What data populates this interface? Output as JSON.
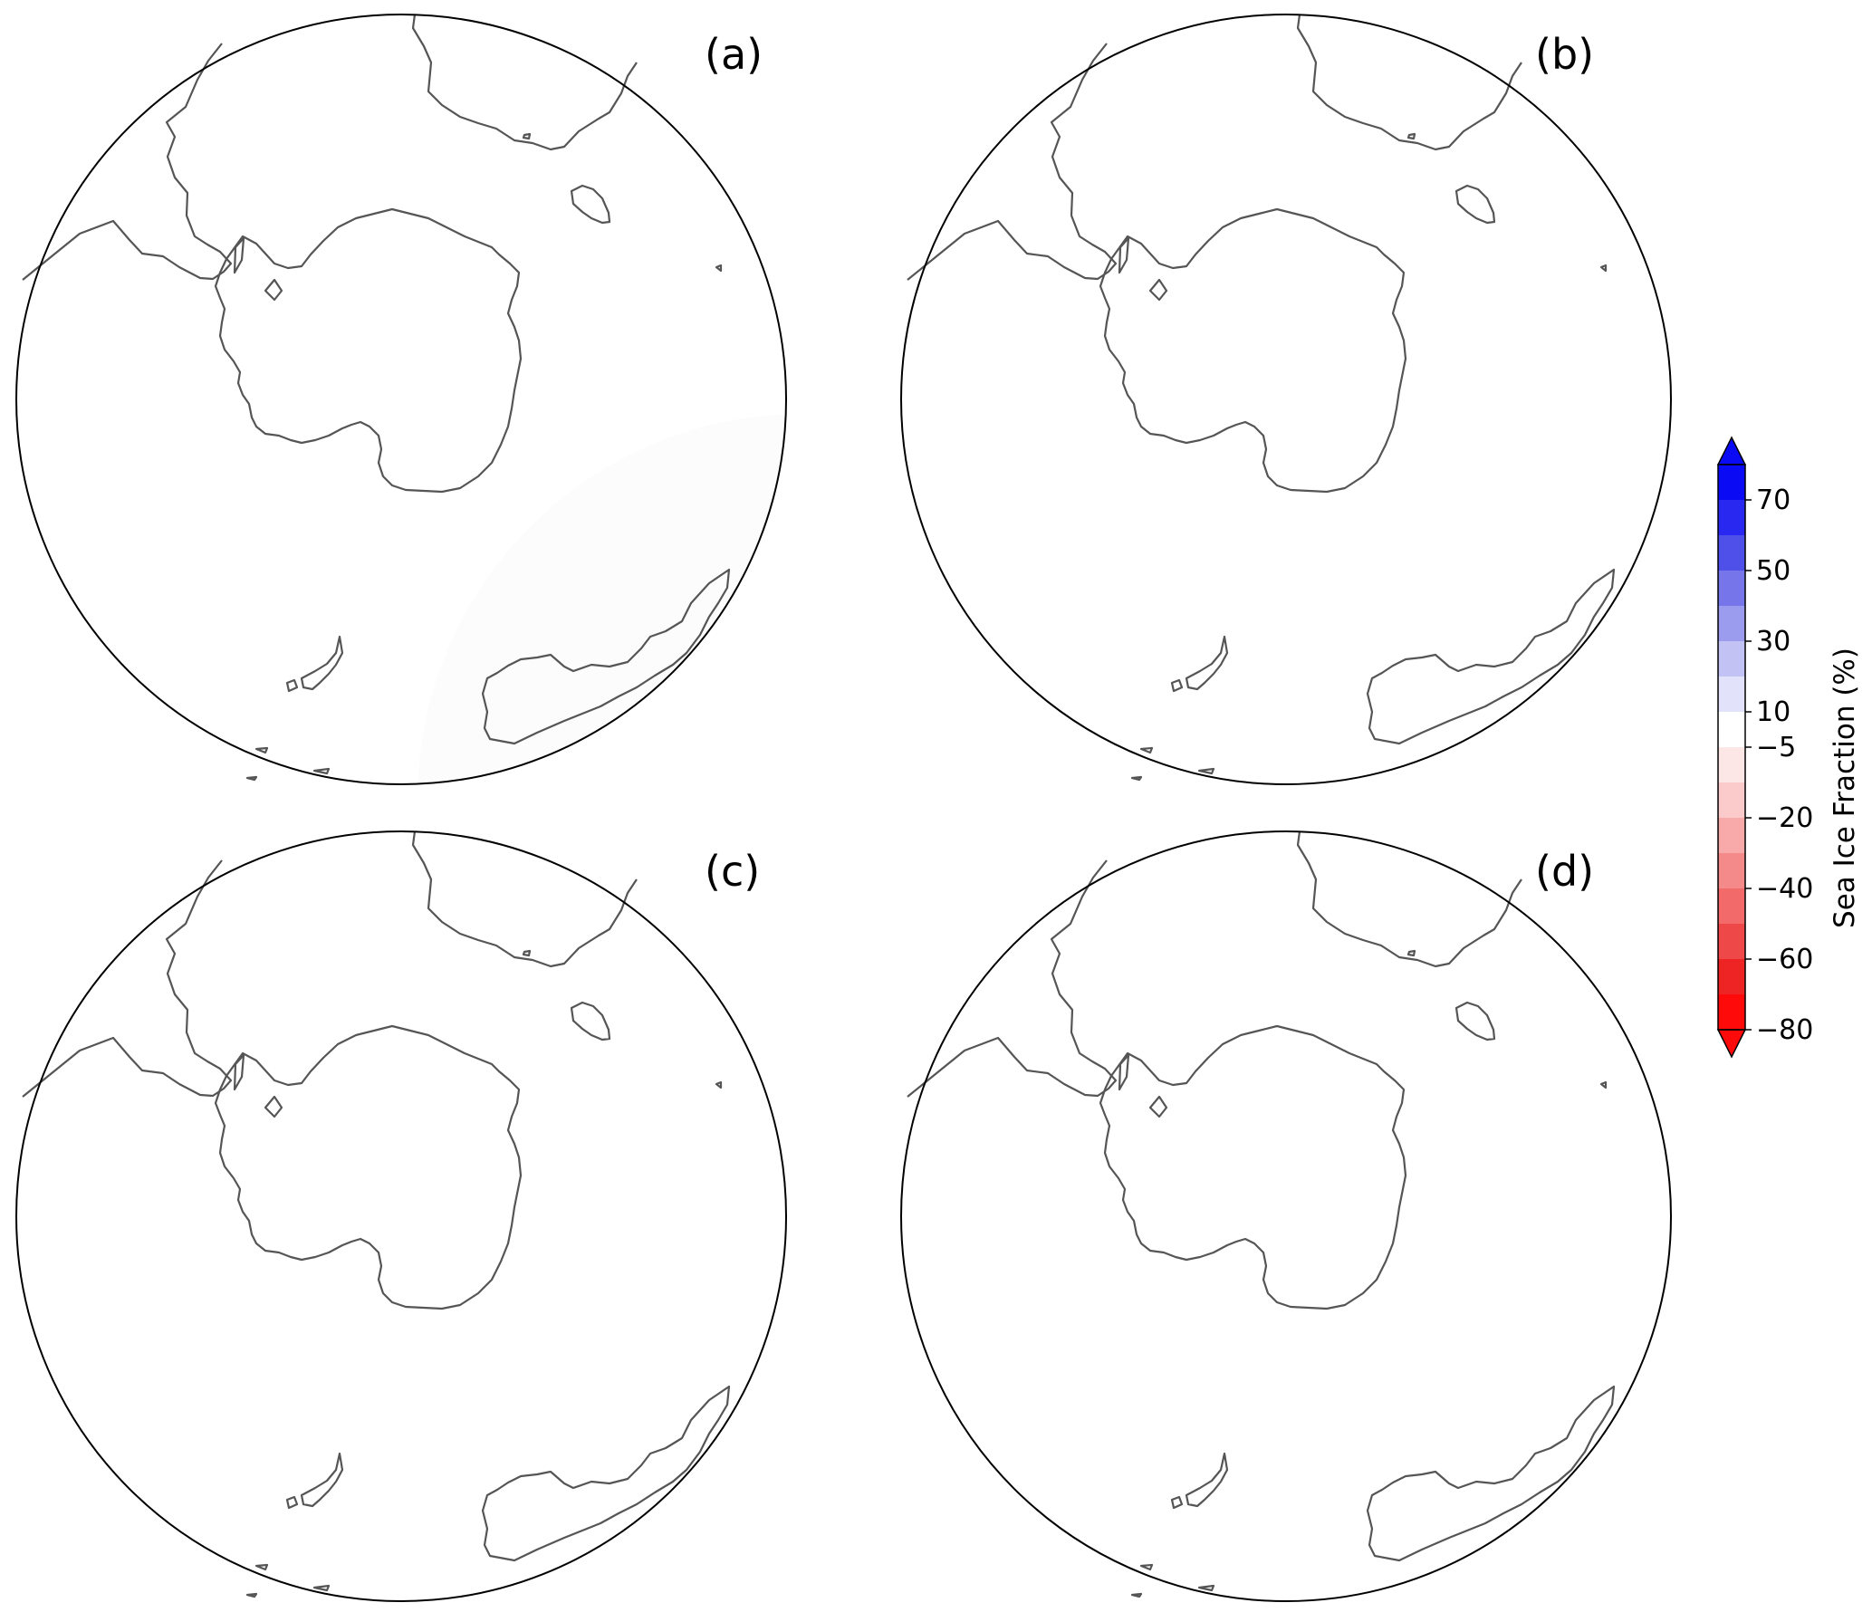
{
  "figure": {
    "panels": [
      {
        "label": "(a)"
      },
      {
        "label": "(b)"
      },
      {
        "label": "(c)"
      },
      {
        "label": "(d)"
      }
    ]
  },
  "colorbar": {
    "title": "Sea Ice Fraction (%)",
    "ticks": [
      "70",
      "50",
      "30",
      "10",
      "−5",
      "−20",
      "−40",
      "−60",
      "−80"
    ],
    "colors": [
      "#0a0af5",
      "#2828f0",
      "#4f4fe9",
      "#7676ea",
      "#9c9cee",
      "#c2c2f4",
      "#e2e2fb",
      "#ffffff",
      "#fde6e6",
      "#fbcaca",
      "#f8aaaa",
      "#f58a8a",
      "#f26a6a",
      "#ef4848",
      "#ee2424",
      "#ff0a0a"
    ]
  }
}
